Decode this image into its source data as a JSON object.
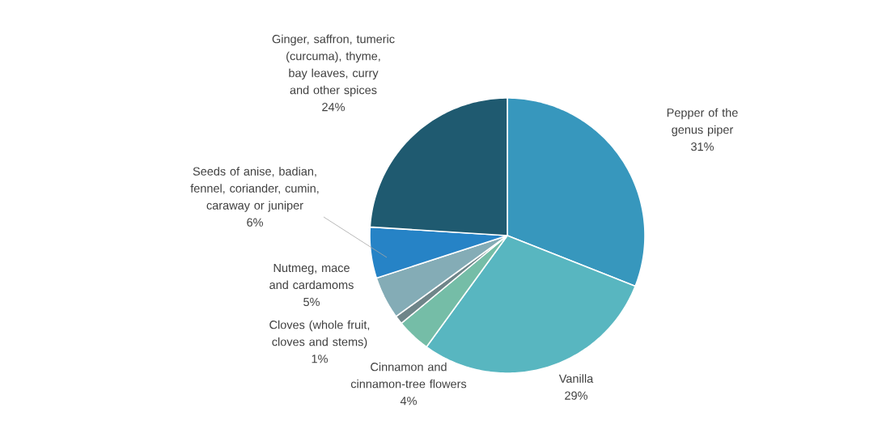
{
  "chart_data": {
    "type": "pie",
    "categories": [
      "Pepper of the genus piper",
      "Vanilla",
      "Cinnamon and cinnamon-tree flowers",
      "Cloves (whole fruit, cloves and stems)",
      "Nutmeg, mace and cardamoms",
      "Seeds of anise, badian, fennel, coriander, cumin, caraway or juniper",
      "Ginger, saffron, tumeric (curcuma), thyme, bay leaves, curry and other spices"
    ],
    "values": [
      31,
      29,
      4,
      1,
      5,
      6,
      24
    ],
    "value_labels": [
      "31%",
      "29%",
      "4%",
      "1%",
      "5%",
      "6%",
      "24%"
    ],
    "colors": [
      "#3797bd",
      "#58b6c0",
      "#75bda7",
      "#6f8589",
      "#84acb6",
      "#2683c6",
      "#1f5a70"
    ]
  }
}
